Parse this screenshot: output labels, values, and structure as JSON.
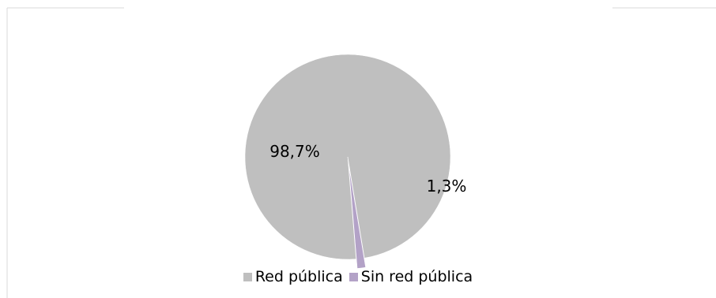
{
  "chart_data": {
    "type": "pie",
    "title": "",
    "categories": [
      "Red pública",
      "Sin red pública"
    ],
    "values": [
      98.7,
      1.3
    ],
    "data_labels": [
      "98,7%",
      "1,3%"
    ],
    "colors": [
      "#bfbfbf",
      "#b3a2c7"
    ],
    "legend": {
      "position": "bottom",
      "entries": [
        "Red pública",
        "Sin red pública"
      ]
    }
  }
}
